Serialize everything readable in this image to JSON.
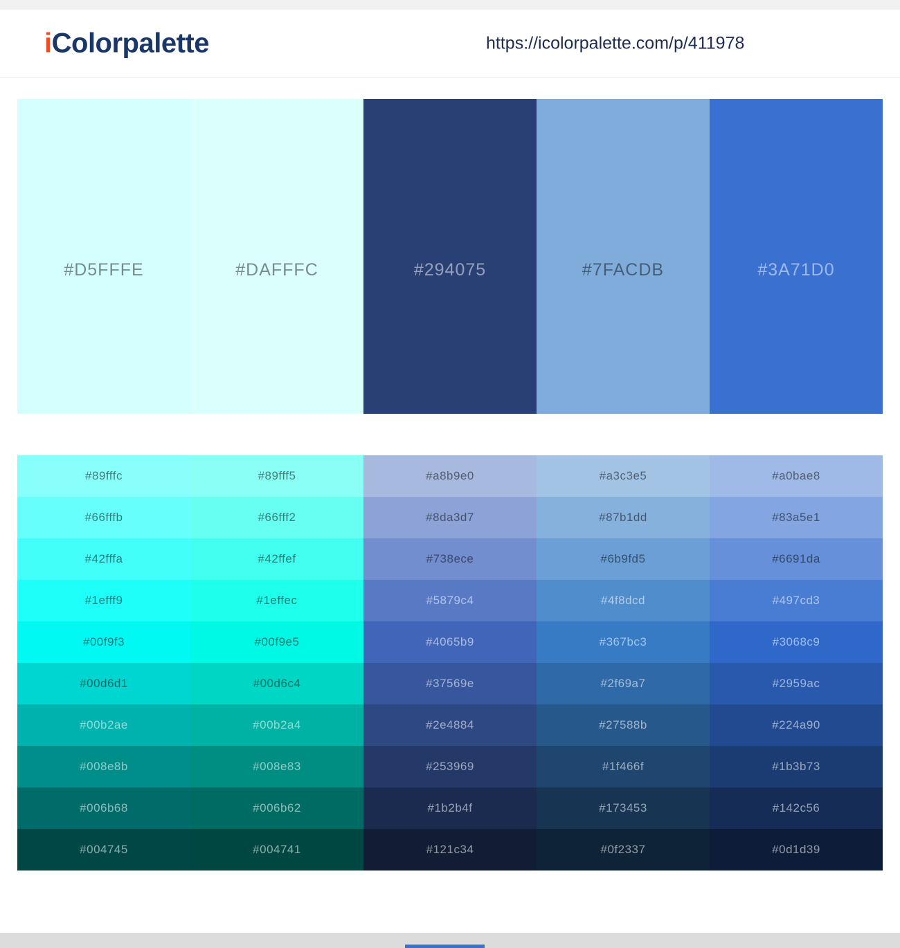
{
  "header": {
    "logo_i": "i",
    "logo_rest": "Colorpalette",
    "logo_i_color": "#ff4713",
    "logo_text_color": "#1b3768",
    "url": "https://icolorpalette.com/p/411978",
    "url_color": "#1d2c50"
  },
  "palette": {
    "colors": [
      "#D5FFFE",
      "#DAFFFC",
      "#294075",
      "#7FACDB",
      "#3A71D0"
    ]
  },
  "shades": {
    "columns": [
      [
        "#89fffc",
        "#66fffb",
        "#42fffa",
        "#1efff9",
        "#00f9f3",
        "#00d6d1",
        "#00b2ae",
        "#008e8b",
        "#006b68",
        "#004745"
      ],
      [
        "#89fff5",
        "#66fff2",
        "#42ffef",
        "#1effec",
        "#00f9e5",
        "#00d6c4",
        "#00b2a4",
        "#008e83",
        "#006b62",
        "#004741"
      ],
      [
        "#a8b9e0",
        "#8da3d7",
        "#738ece",
        "#5879c4",
        "#4065b9",
        "#37569e",
        "#2e4884",
        "#253969",
        "#1b2b4f",
        "#121c34"
      ],
      [
        "#a3c3e5",
        "#87b1dd",
        "#6b9fd5",
        "#4f8dcd",
        "#367bc3",
        "#2f69a7",
        "#27588b",
        "#1f466f",
        "#173453",
        "#0f2337"
      ],
      [
        "#a0bae8",
        "#83a5e1",
        "#6691da",
        "#497cd3",
        "#3068c9",
        "#2959ac",
        "#224a90",
        "#1b3b73",
        "#142c56",
        "#0d1d39"
      ]
    ]
  },
  "chrome": {
    "top_strip_color": "#f1f1f1",
    "bottom_strip_color": "#dcdcdc",
    "scroll_thumb_color": "#3b6fd4"
  }
}
